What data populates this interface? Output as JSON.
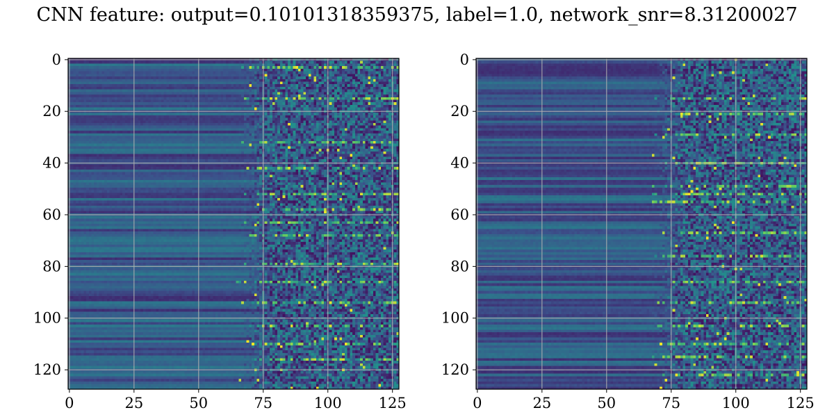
{
  "chart_data": {
    "type": "heatmap",
    "title": "CNN feature: output=0.10101318359375, label=1.0, network_snr=8.31200027",
    "colormap": "viridis",
    "grid": true,
    "panels": [
      {
        "xlim": [
          0,
          127
        ],
        "ylim": [
          127,
          0
        ],
        "xticks": [
          0,
          25,
          50,
          75,
          100,
          125
        ],
        "yticks": [
          0,
          20,
          40,
          60,
          80,
          100,
          120
        ],
        "transition_col": 68,
        "bright_rows": [
          3,
          15,
          32,
          42,
          52,
          58,
          63,
          68,
          79,
          86,
          94,
          103,
          110,
          116
        ],
        "seed": 7
      },
      {
        "xlim": [
          0,
          127
        ],
        "ylim": [
          127,
          0
        ],
        "xticks": [
          0,
          25,
          50,
          75,
          100,
          125
        ],
        "yticks": [
          0,
          20,
          40,
          60,
          80,
          100,
          120
        ],
        "transition_col": 70,
        "bright_rows": [
          15,
          21,
          29,
          40,
          49,
          52,
          55,
          67,
          76,
          86,
          94,
          103,
          110,
          115,
          122
        ],
        "seed": 13
      }
    ]
  }
}
